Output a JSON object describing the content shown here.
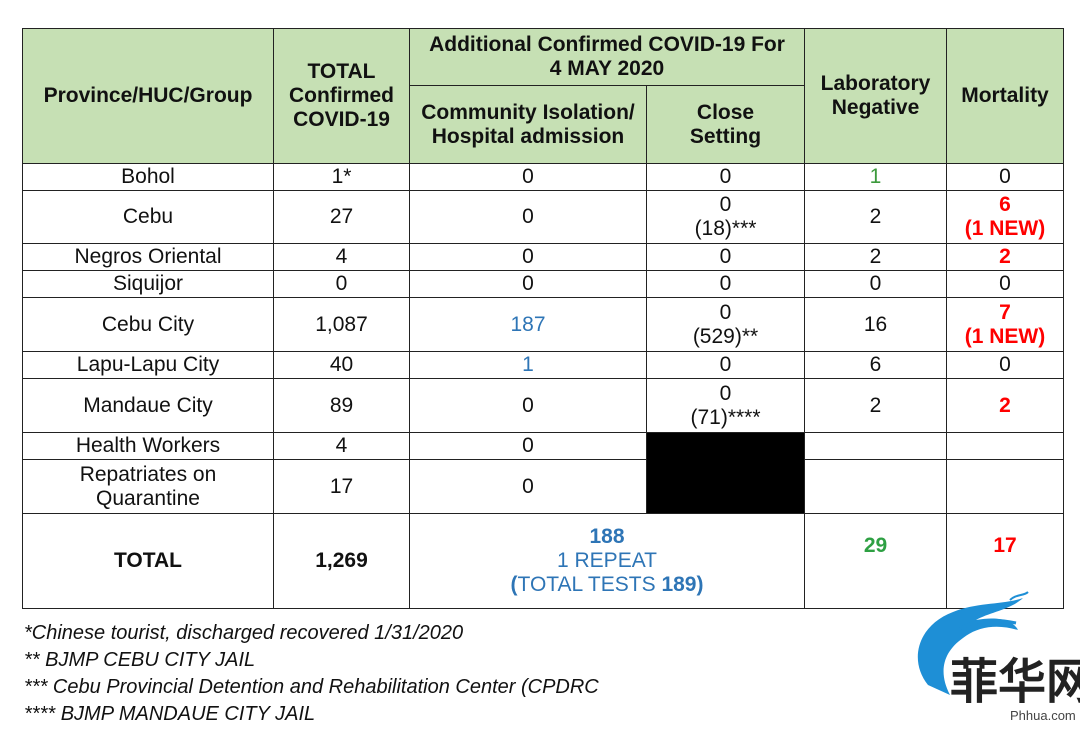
{
  "headers": {
    "province": "Province/HUC/Group",
    "total_confirmed": "TOTAL Confirmed COVID-19",
    "additional": "Additional Confirmed COVID-19 For 4 MAY 2020",
    "community": "Community Isolation/ Hospital admission",
    "close_setting": "Close Setting",
    "lab_negative": "Laboratory Negative",
    "mortality": "Mortality"
  },
  "rows": [
    {
      "name": "Bohol",
      "total": "1*",
      "community": "0",
      "close": "0",
      "close_note": "",
      "lab": "1",
      "mort": "0",
      "mort_note": ""
    },
    {
      "name": "Cebu",
      "total": "27",
      "community": "0",
      "close": "0",
      "close_note": "(18)***",
      "lab": "2",
      "mort": "6",
      "mort_note": "(1 NEW)"
    },
    {
      "name": "Negros Oriental",
      "total": "4",
      "community": "0",
      "close": "0",
      "close_note": "",
      "lab": "2",
      "mort": "2",
      "mort_note": ""
    },
    {
      "name": "Siquijor",
      "total": "0",
      "community": "0",
      "close": "0",
      "close_note": "",
      "lab": "0",
      "mort": "0",
      "mort_note": ""
    },
    {
      "name": "Cebu City",
      "total": "1,087",
      "community": "187",
      "close": "0",
      "close_note": "(529)**",
      "lab": "16",
      "mort": "7",
      "mort_note": "(1 NEW)"
    },
    {
      "name": "Lapu-Lapu City",
      "total": "40",
      "community": "1",
      "close": "0",
      "close_note": "",
      "lab": "6",
      "mort": "0",
      "mort_note": ""
    },
    {
      "name": "Mandaue City",
      "total": "89",
      "community": "0",
      "close": "0",
      "close_note": "(71)****",
      "lab": "2",
      "mort": "2",
      "mort_note": ""
    },
    {
      "name": "Health Workers",
      "total": "4",
      "community": "0",
      "close": "",
      "close_note": "",
      "lab": "",
      "mort": "",
      "mort_note": ""
    },
    {
      "name": "Repatriates on Quarantine",
      "total": "17",
      "community": "0",
      "close": "",
      "close_note": "",
      "lab": "",
      "mort": "",
      "mort_note": ""
    }
  ],
  "total": {
    "label": "TOTAL",
    "confirmed": "1,269",
    "additional": "188",
    "repeat": "1 REPEAT",
    "tests_prefix": "(",
    "tests_label": "TOTAL TESTS ",
    "tests_value": "189",
    "tests_suffix": ")",
    "lab_negative": "29",
    "mortality": "17"
  },
  "footnotes": [
    "*Chinese tourist, discharged recovered 1/31/2020",
    "** BJMP CEBU CITY JAIL",
    "*** Cebu Provincial Detention and Rehabilitation Center (CPDRC",
    "**** BJMP MANDAUE CITY JAIL"
  ],
  "watermark": {
    "chars": "菲华网",
    "site": "Phhua.com"
  },
  "colors": {
    "header_bg": "#c6e0b4",
    "blue": "#2e75b6",
    "red": "#ff0000",
    "green": "#3c9a3c"
  }
}
